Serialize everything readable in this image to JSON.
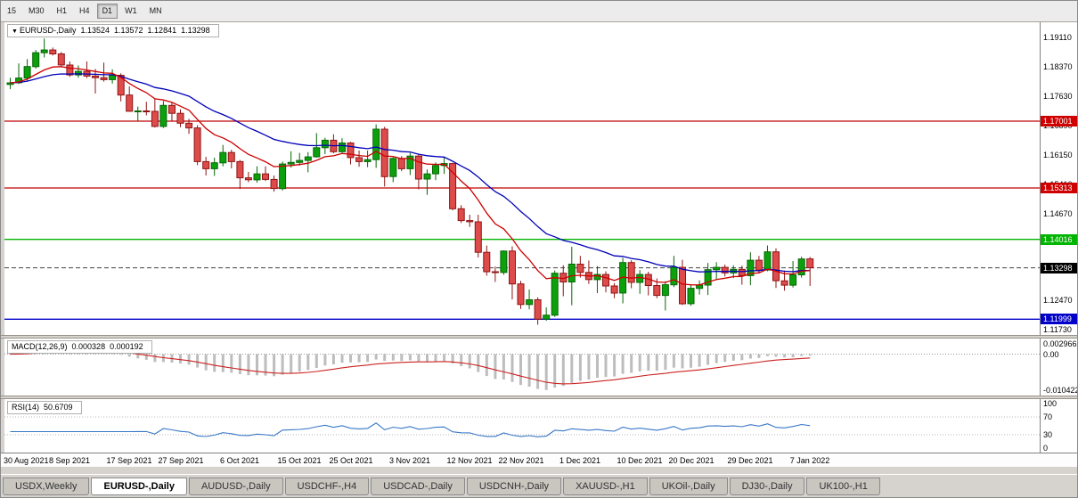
{
  "toolbar": {
    "timeframes": [
      {
        "label": "15",
        "active": false
      },
      {
        "label": "M30",
        "active": false
      },
      {
        "label": "H1",
        "active": false
      },
      {
        "label": "H4",
        "active": false
      },
      {
        "label": "D1",
        "active": true
      },
      {
        "label": "W1",
        "active": false
      },
      {
        "label": "MN",
        "active": false
      }
    ]
  },
  "symbol_header": {
    "arrow": "▼",
    "title": "EURUSD-,Daily",
    "open": "1.13524",
    "high": "1.13572",
    "low": "1.12841",
    "close": "1.13298"
  },
  "price_axis": {
    "ticks": [
      "1.19110",
      "1.18370",
      "1.17630",
      "1.16890",
      "1.16150",
      "1.15410",
      "1.14670",
      "1.12470",
      "1.11730"
    ]
  },
  "hlines": [
    {
      "price": 1.17001,
      "label": "1.17001",
      "color": "#C00000",
      "badge_color": "#CE0000"
    },
    {
      "price": 1.15313,
      "label": "1.15313",
      "color": "#C00000",
      "badge_color": "#CE0000"
    },
    {
      "price": 1.14016,
      "label": "1.14016",
      "color": "#00B400",
      "badge_color": "#00B400"
    },
    {
      "price": 1.11999,
      "label": "1.11999",
      "color": "#0000C8",
      "badge_color": "#0000C8"
    }
  ],
  "current_price": {
    "value": 1.13298,
    "label": "1.13298",
    "badge_color": "#000000"
  },
  "macd_panel": {
    "title": "MACD(12,26,9)",
    "main_value": "0.000328",
    "signal_value": "0.000192",
    "max": 0.002966,
    "min": -0.010422,
    "axis_labels": [
      {
        "value": 0.002966,
        "text": "0.002966"
      },
      {
        "value": 0,
        "text": "0.00"
      },
      {
        "value": -0.010422,
        "text": "-0.010422"
      }
    ]
  },
  "rsi_panel": {
    "title": "RSI(14)",
    "value": "50.6709",
    "levels": [
      70,
      30
    ],
    "axis_labels": [
      {
        "value": 100,
        "text": "100"
      },
      {
        "value": 70,
        "text": "70"
      },
      {
        "value": 30,
        "text": "30"
      },
      {
        "value": 0,
        "text": "0"
      }
    ]
  },
  "x_axis": {
    "labels": [
      {
        "i": 0,
        "text": "30 Aug 2021"
      },
      {
        "i": 7,
        "text": "8 Sep 2021"
      },
      {
        "i": 14,
        "text": "17 Sep 2021"
      },
      {
        "i": 20,
        "text": "27 Sep 2021"
      },
      {
        "i": 27,
        "text": "6 Oct 2021"
      },
      {
        "i": 34,
        "text": "15 Oct 2021"
      },
      {
        "i": 40,
        "text": "25 Oct 2021"
      },
      {
        "i": 47,
        "text": "3 Nov 2021"
      },
      {
        "i": 54,
        "text": "12 Nov 2021"
      },
      {
        "i": 60,
        "text": "22 Nov 2021"
      },
      {
        "i": 67,
        "text": "1 Dec 2021"
      },
      {
        "i": 74,
        "text": "10 Dec 2021"
      },
      {
        "i": 80,
        "text": "20 Dec 2021"
      },
      {
        "i": 87,
        "text": "29 Dec 2021"
      },
      {
        "i": 94,
        "text": "7 Jan 2022"
      }
    ]
  },
  "tabs": [
    {
      "label": "USDX,Weekly",
      "active": false
    },
    {
      "label": "EURUSD-,Daily",
      "active": true
    },
    {
      "label": "AUDUSD-,Daily",
      "active": false
    },
    {
      "label": "USDCHF-,H4",
      "active": false
    },
    {
      "label": "USDCAD-,Daily",
      "active": false
    },
    {
      "label": "USDCNH-,Daily",
      "active": false
    },
    {
      "label": "XAUUSD-,H1",
      "active": false
    },
    {
      "label": "UKOil-,Daily",
      "active": false
    },
    {
      "label": "DJ30-,Daily",
      "active": false
    },
    {
      "label": "UK100-,H1",
      "active": false
    }
  ],
  "chart_data": {
    "type": "candlestick",
    "symbol": "EURUSD-",
    "period": "Daily",
    "visible_range": {
      "start": "30 Aug 2021",
      "end": "7 Jan 2022"
    },
    "ylim": [
      1.11601,
      1.19499
    ],
    "ma_fast_period": 10,
    "ma_slow_period": 24,
    "colors": {
      "up": "#0DA00D",
      "up_border": "#056605",
      "down": "#DD4B4B",
      "down_border": "#8E1414",
      "ma_fast": "#CC0000",
      "ma_slow": "#0000B8",
      "macd_hist": "#BDBDBD",
      "macd_signal": "#CC2222",
      "rsi": "#3878C8"
    },
    "candles": [
      [
        1.1793,
        1.181,
        1.1781,
        1.1797
      ],
      [
        1.1797,
        1.1846,
        1.1794,
        1.1809
      ],
      [
        1.1809,
        1.1857,
        1.1802,
        1.1838
      ],
      [
        1.1838,
        1.188,
        1.1833,
        1.1873
      ],
      [
        1.1873,
        1.1909,
        1.1861,
        1.188
      ],
      [
        1.188,
        1.1886,
        1.1866,
        1.187
      ],
      [
        1.187,
        1.1875,
        1.1838,
        1.1842
      ],
      [
        1.1842,
        1.1851,
        1.1812,
        1.1817
      ],
      [
        1.1817,
        1.1841,
        1.181,
        1.1826
      ],
      [
        1.1826,
        1.1851,
        1.1809,
        1.1814
      ],
      [
        1.1814,
        1.1832,
        1.177,
        1.181
      ],
      [
        1.181,
        1.1848,
        1.18,
        1.1805
      ],
      [
        1.1805,
        1.1831,
        1.1795,
        1.1816
      ],
      [
        1.1816,
        1.1821,
        1.175,
        1.1766
      ],
      [
        1.1766,
        1.1788,
        1.1724,
        1.1725
      ],
      [
        1.1725,
        1.1737,
        1.17,
        1.1726
      ],
      [
        1.1726,
        1.1749,
        1.1715,
        1.1725
      ],
      [
        1.1725,
        1.1756,
        1.1684,
        1.1687
      ],
      [
        1.1687,
        1.1751,
        1.1683,
        1.174
      ],
      [
        1.174,
        1.1748,
        1.17,
        1.172
      ],
      [
        1.172,
        1.173,
        1.1685,
        1.1695
      ],
      [
        1.1695,
        1.1706,
        1.1668,
        1.1683
      ],
      [
        1.1683,
        1.169,
        1.1589,
        1.1598
      ],
      [
        1.1598,
        1.161,
        1.1563,
        1.158
      ],
      [
        1.158,
        1.1608,
        1.1562,
        1.1595
      ],
      [
        1.1595,
        1.164,
        1.1586,
        1.1621
      ],
      [
        1.1621,
        1.1628,
        1.1581,
        1.1598
      ],
      [
        1.1598,
        1.1602,
        1.1529,
        1.1557
      ],
      [
        1.1557,
        1.1572,
        1.1546,
        1.1552
      ],
      [
        1.1552,
        1.1586,
        1.1545,
        1.1567
      ],
      [
        1.1567,
        1.1586,
        1.1549,
        1.1553
      ],
      [
        1.1553,
        1.1563,
        1.1522,
        1.153
      ],
      [
        1.153,
        1.1598,
        1.1525,
        1.1592
      ],
      [
        1.1592,
        1.1624,
        1.1583,
        1.1596
      ],
      [
        1.1596,
        1.162,
        1.1588,
        1.1601
      ],
      [
        1.1601,
        1.1622,
        1.1571,
        1.161
      ],
      [
        1.161,
        1.167,
        1.1608,
        1.1633
      ],
      [
        1.1633,
        1.1658,
        1.1617,
        1.1652
      ],
      [
        1.1652,
        1.1667,
        1.1619,
        1.1623
      ],
      [
        1.1623,
        1.1657,
        1.162,
        1.1645
      ],
      [
        1.1645,
        1.1648,
        1.1591,
        1.1608
      ],
      [
        1.1608,
        1.1626,
        1.1585,
        1.1598
      ],
      [
        1.1598,
        1.1626,
        1.1584,
        1.1603
      ],
      [
        1.1603,
        1.1692,
        1.1582,
        1.168
      ],
      [
        1.168,
        1.1686,
        1.1535,
        1.156
      ],
      [
        1.156,
        1.1609,
        1.1546,
        1.1606
      ],
      [
        1.1606,
        1.1612,
        1.1574,
        1.158
      ],
      [
        1.158,
        1.162,
        1.1564,
        1.1612
      ],
      [
        1.1612,
        1.1617,
        1.1528,
        1.1554
      ],
      [
        1.1554,
        1.1578,
        1.1514,
        1.1567
      ],
      [
        1.1567,
        1.1596,
        1.1551,
        1.1588
      ],
      [
        1.1588,
        1.1609,
        1.1567,
        1.1593
      ],
      [
        1.1593,
        1.1595,
        1.1475,
        1.1479
      ],
      [
        1.1479,
        1.1488,
        1.1443,
        1.1449
      ],
      [
        1.1449,
        1.1464,
        1.1433,
        1.1446
      ],
      [
        1.1446,
        1.1464,
        1.1356,
        1.1369
      ],
      [
        1.1369,
        1.1386,
        1.131,
        1.132
      ],
      [
        1.132,
        1.1333,
        1.1294,
        1.1318
      ],
      [
        1.1318,
        1.1374,
        1.1312,
        1.1372
      ],
      [
        1.1372,
        1.1384,
        1.125,
        1.1289
      ],
      [
        1.1289,
        1.1297,
        1.1226,
        1.1237
      ],
      [
        1.1237,
        1.1275,
        1.1225,
        1.1249
      ],
      [
        1.1249,
        1.1255,
        1.1186,
        1.12
      ],
      [
        1.12,
        1.123,
        1.1196,
        1.121
      ],
      [
        1.121,
        1.1323,
        1.1206,
        1.1316
      ],
      [
        1.1316,
        1.1336,
        1.1258,
        1.1294
      ],
      [
        1.1294,
        1.1383,
        1.1235,
        1.1339
      ],
      [
        1.1339,
        1.136,
        1.1305,
        1.1318
      ],
      [
        1.1318,
        1.1348,
        1.1289,
        1.13
      ],
      [
        1.13,
        1.1334,
        1.1266,
        1.1313
      ],
      [
        1.1313,
        1.1321,
        1.1268,
        1.1284
      ],
      [
        1.1284,
        1.1291,
        1.1253,
        1.1266
      ],
      [
        1.1266,
        1.1355,
        1.124,
        1.1343
      ],
      [
        1.1343,
        1.1349,
        1.1278,
        1.1293
      ],
      [
        1.1293,
        1.1324,
        1.1264,
        1.1313
      ],
      [
        1.1313,
        1.132,
        1.126,
        1.1285
      ],
      [
        1.1285,
        1.1303,
        1.1253,
        1.126
      ],
      [
        1.126,
        1.1296,
        1.1222,
        1.1287
      ],
      [
        1.1287,
        1.136,
        1.1281,
        1.1331
      ],
      [
        1.1331,
        1.135,
        1.1236,
        1.1239
      ],
      [
        1.1239,
        1.1288,
        1.1234,
        1.1278
      ],
      [
        1.1278,
        1.1298,
        1.1262,
        1.1286
      ],
      [
        1.1286,
        1.1342,
        1.1261,
        1.1325
      ],
      [
        1.1325,
        1.1344,
        1.13,
        1.1331
      ],
      [
        1.1331,
        1.1338,
        1.1308,
        1.1317
      ],
      [
        1.1317,
        1.1336,
        1.1304,
        1.1326
      ],
      [
        1.1326,
        1.1335,
        1.1287,
        1.131
      ],
      [
        1.131,
        1.1369,
        1.1286,
        1.1349
      ],
      [
        1.1349,
        1.136,
        1.1316,
        1.1324
      ],
      [
        1.1324,
        1.1386,
        1.1321,
        1.137
      ],
      [
        1.137,
        1.1379,
        1.1279,
        1.1297
      ],
      [
        1.1297,
        1.1323,
        1.1272,
        1.1286
      ],
      [
        1.1286,
        1.1347,
        1.128,
        1.1312
      ],
      [
        1.1312,
        1.1358,
        1.1305,
        1.1352
      ],
      [
        1.13524,
        1.13572,
        1.12841,
        1.13298
      ]
    ]
  }
}
